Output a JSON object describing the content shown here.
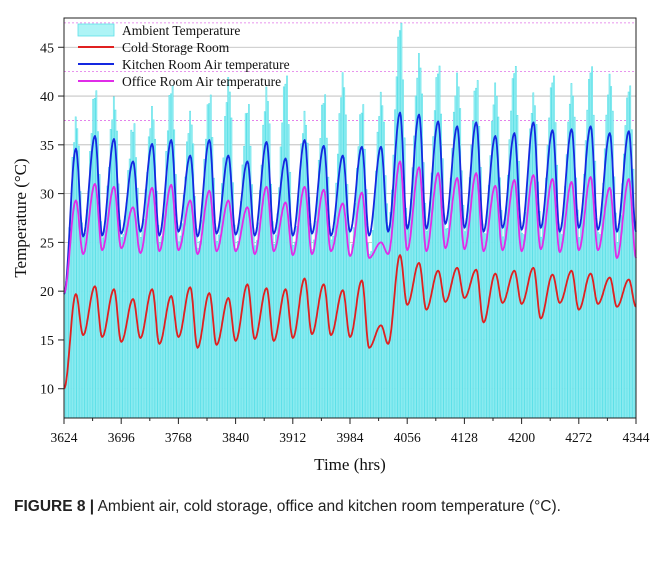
{
  "chart_data": {
    "type": "line",
    "xlabel": "Time (hrs)",
    "ylabel": "Temperature (°C)",
    "xlim": [
      3624,
      4344
    ],
    "ylim": [
      7,
      48
    ],
    "x_ticks": [
      "3624",
      "3696",
      "3768",
      "3840",
      "3912",
      "3984",
      "4056",
      "4128",
      "4200",
      "4272",
      "4344"
    ],
    "y_ticks": [
      "10",
      "15",
      "20",
      "25",
      "30",
      "35",
      "40",
      "45"
    ],
    "grid": "horizontal gridlines",
    "legend_position": "top-left",
    "series": [
      {
        "name": "Ambient  Temperature",
        "color": "#5ee0e8",
        "style": "hourly bars",
        "daily_peaks": [
          37.5,
          40.5,
          39.5,
          37,
          38.5,
          41,
          38,
          40,
          41.5,
          39,
          40.5,
          42,
          38,
          40,
          42,
          39,
          40,
          47.5,
          44,
          43,
          42,
          41.5,
          41,
          43,
          40,
          42,
          41,
          43,
          42,
          41
        ],
        "daily_lows": [
          20,
          25.5,
          25.5,
          25.5,
          25.5,
          25,
          25,
          24.5,
          25,
          24.5,
          24.5,
          25,
          24.5,
          24.5,
          25,
          24,
          23.5,
          27,
          26.5,
          26.5,
          26,
          26.5,
          25.5,
          26,
          25.5,
          26,
          25.5,
          26,
          25.5,
          25.5
        ]
      },
      {
        "name": "Cold Storage Room",
        "color": "#e02020",
        "daily_peaks": [
          19.7,
          20.5,
          20.2,
          19.2,
          20.2,
          19.5,
          20.4,
          19.8,
          19.3,
          20.7,
          20.3,
          20.2,
          21.3,
          20.7,
          20.1,
          21.1,
          16.5,
          23.7,
          22.9,
          22.1,
          22.4,
          22.2,
          21.8,
          22.1,
          22.4,
          21.7,
          22.1,
          21.8,
          21.4,
          21.2
        ],
        "daily_lows": [
          10,
          15.5,
          15.3,
          14.8,
          15.2,
          14.6,
          15.3,
          14.2,
          14.5,
          14.9,
          15.1,
          14.9,
          15.2,
          15.6,
          15.5,
          15.3,
          14.2,
          14.6,
          18.6,
          18.1,
          18.9,
          19.3,
          16.8,
          18.8,
          18.7,
          17.2,
          18.8,
          18.1,
          18.7,
          18.4
        ]
      },
      {
        "name": "Kitchen Room  Air temperature",
        "color": "#1428e0",
        "daily_peaks": [
          34.6,
          35.9,
          35.6,
          33.3,
          35.1,
          35.5,
          33.9,
          35.5,
          33.9,
          33.3,
          35.3,
          33.6,
          35.5,
          34.9,
          33.9,
          34.8,
          34.8,
          38.3,
          38.1,
          37.4,
          36.9,
          37.3,
          35.9,
          36.2,
          37.3,
          36.5,
          36.6,
          36.9,
          36.2,
          36.4
        ],
        "daily_lows": [
          19.7,
          25.6,
          25.7,
          25.9,
          26.1,
          25.7,
          26.1,
          25.6,
          25.9,
          25.8,
          25.7,
          25.9,
          25.7,
          25.9,
          25.7,
          26.1,
          25.7,
          26.1,
          26.4,
          26.4,
          26.9,
          26.5,
          26.1,
          26.5,
          26.3,
          26.5,
          26.1,
          26.5,
          26.3,
          26.1
        ]
      },
      {
        "name": "Office Room Air temperature",
        "color": "#e02ce8",
        "daily_peaks": [
          29.3,
          31,
          30.7,
          28.6,
          30.6,
          30.9,
          29.3,
          30.3,
          29.3,
          28.6,
          30.7,
          29.1,
          30.7,
          30.4,
          29,
          30.1,
          25,
          33.3,
          32.7,
          32.1,
          31.6,
          32.1,
          30.8,
          31.4,
          31.9,
          31.5,
          31.2,
          31.7,
          30.6,
          31.5
        ],
        "daily_lows": [
          19.8,
          23.8,
          24.2,
          24.4,
          23.9,
          24.1,
          24.2,
          23.8,
          24.1,
          24.1,
          23.8,
          24.1,
          23.7,
          23.8,
          24.1,
          23.6,
          23.4,
          23.8,
          24.2,
          24.1,
          24.4,
          24.3,
          24.1,
          24.2,
          24.1,
          24.3,
          24,
          24.2,
          24.2,
          23.4
        ]
      }
    ]
  },
  "caption": {
    "label": "FIGURE 8 |",
    "text": " Ambient air, cold storage, office and kitchen room temperature (°C)."
  }
}
